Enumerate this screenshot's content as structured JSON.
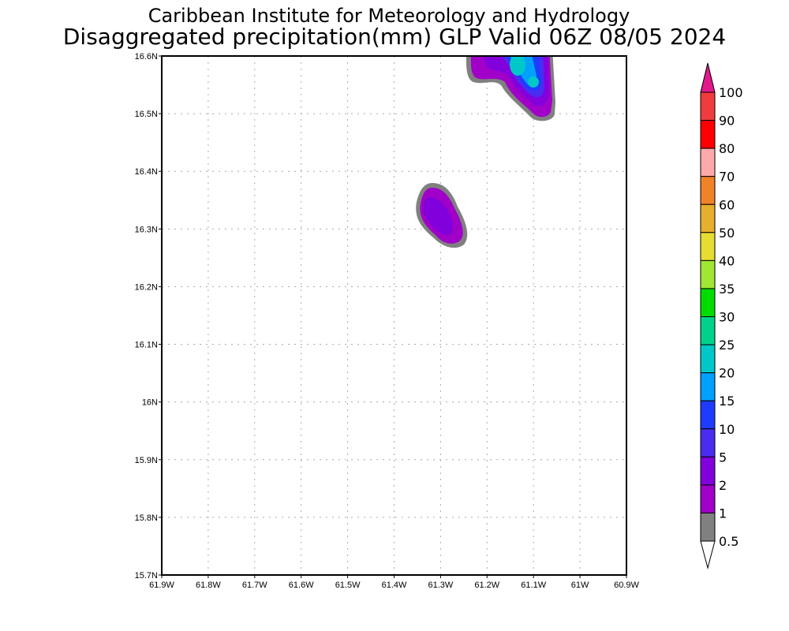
{
  "title_line1": "Caribbean Institute for Meteorology and Hydrology",
  "title_line2": "Disaggregated precipitation(mm) GLP Valid 06Z 08/05 2024",
  "chart_data": {
    "type": "heatmap",
    "title": "Disaggregated precipitation(mm) GLP Valid 06Z 08/05 2024",
    "x_ticks": [
      "61.9W",
      "61.8W",
      "61.7W",
      "61.6W",
      "61.5W",
      "61.4W",
      "61.3W",
      "61.2W",
      "61.1W",
      "61W",
      "60.9W"
    ],
    "y_ticks": [
      "16.6N",
      "16.5N",
      "16.4N",
      "16.3N",
      "16.2N",
      "16.1N",
      "16N",
      "15.9N",
      "15.8N",
      "15.7N"
    ],
    "xlim": [
      -61.9,
      -60.9
    ],
    "ylim": [
      15.7,
      16.6
    ],
    "grid": true,
    "colorbar": {
      "labels": [
        "100",
        "90",
        "80",
        "70",
        "60",
        "50",
        "40",
        "35",
        "30",
        "25",
        "20",
        "15",
        "10",
        "5",
        "2",
        "1",
        "0.5"
      ],
      "top_arrow_color": "#e0188a",
      "colors": [
        "#f03c3c",
        "#ff0000",
        "#ffaaaa",
        "#f08228",
        "#e6af2d",
        "#e6dc32",
        "#a0e632",
        "#00dc00",
        "#00d28c",
        "#00c8c8",
        "#00a0ff",
        "#1e3cff",
        "#4a2cf0",
        "#8200dc",
        "#a000c8",
        "#808080"
      ],
      "bottom_arrow_color": "#ffffff"
    },
    "features": [
      {
        "name": "rain-cell-north",
        "approx_center": [
          -61.12,
          16.56
        ],
        "max_class": "20-25"
      },
      {
        "name": "rain-cell-central",
        "approx_center": [
          -61.3,
          16.32
        ],
        "max_class": "2-5"
      }
    ]
  }
}
